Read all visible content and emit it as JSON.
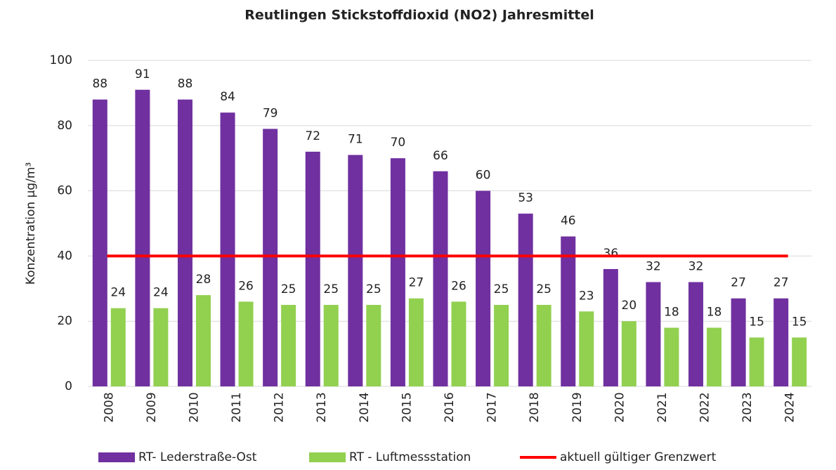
{
  "chart_data": {
    "type": "bar",
    "title": "Reutlingen Stickstoffdioxid (NO2) Jahresmittel",
    "y_label": "Konzentration µg/m³",
    "categories": [
      "2008",
      "2009",
      "2010",
      "2011",
      "2012",
      "2013",
      "2014",
      "2015",
      "2016",
      "2017",
      "2018",
      "2019",
      "2020",
      "2021",
      "2022",
      "2023",
      "2024"
    ],
    "series": [
      {
        "name": "RT- Lederstraße-Ost",
        "type": "bar",
        "color": "#7030a0",
        "values": [
          88,
          91,
          88,
          84,
          79,
          72,
          71,
          70,
          66,
          60,
          53,
          46,
          36,
          32,
          32,
          27,
          27
        ]
      },
      {
        "name": "RT - Luftmessstation",
        "type": "bar",
        "color": "#92d050",
        "values": [
          24,
          24,
          28,
          26,
          25,
          25,
          25,
          27,
          26,
          25,
          25,
          23,
          20,
          18,
          18,
          15,
          15
        ]
      },
      {
        "name": "aktuell gültiger Grenzwert",
        "type": "line",
        "color": "#ff0000",
        "values": [
          40,
          40,
          40,
          40,
          40,
          40,
          40,
          40,
          40,
          40,
          40,
          40,
          40,
          40,
          40,
          40,
          40
        ]
      }
    ],
    "ylim": [
      0,
      100
    ],
    "yticks": [
      0,
      20,
      40,
      60,
      80,
      100
    ],
    "grid": true,
    "legend": "bottom"
  }
}
